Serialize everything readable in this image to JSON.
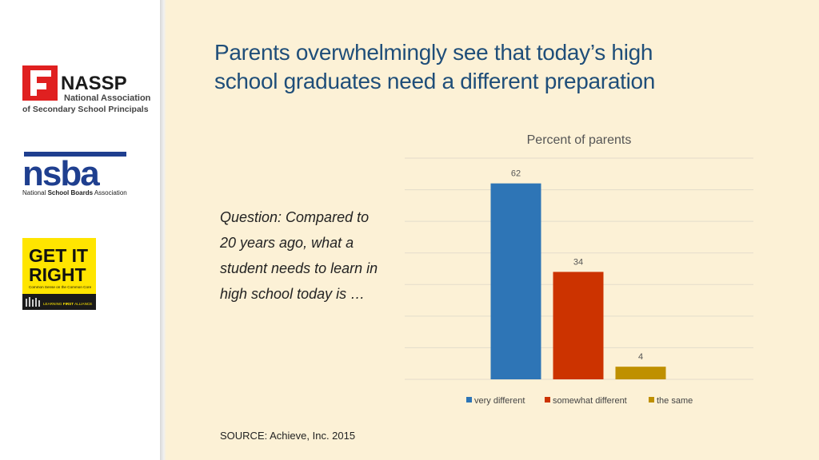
{
  "logos": {
    "nassp": {
      "name": "NASSP",
      "line1": "National Association",
      "line2": "of Secondary School Principals"
    },
    "nsba": {
      "mark": "nsba",
      "caption_prefix": "National ",
      "caption_bold": "School Boards",
      "caption_suffix": " Association"
    },
    "getitright": {
      "line1": "GET IT",
      "line2": "RIGHT",
      "tagline": "Common Sense on the Common Core",
      "footer_prefix": "LEARNING ",
      "footer_bold": "FIRST",
      "footer_suffix": " ALLIANCE"
    }
  },
  "title": {
    "line1": "Parents overwhelmingly see that today’s high",
    "line2": "school graduates need a different preparation"
  },
  "question": "Question: Compared to 20 years ago, what a student needs to learn in high school today is …",
  "source": "SOURCE: Achieve, Inc. 2015",
  "chart_data": {
    "type": "bar",
    "title": "Percent of parents",
    "categories": [
      "very different",
      "somewhat different",
      "the same"
    ],
    "values": [
      62,
      34,
      4
    ],
    "data_labels": [
      "62",
      "34",
      "4"
    ],
    "ylim": [
      0,
      70
    ],
    "grid": true,
    "legend": "bottom",
    "colors": [
      "#2e75b6",
      "#cc3300",
      "#bf9000"
    ]
  },
  "colors": {
    "background": "#fcf1d6",
    "title": "#1f4e79",
    "gridline": "#e3dccb"
  }
}
